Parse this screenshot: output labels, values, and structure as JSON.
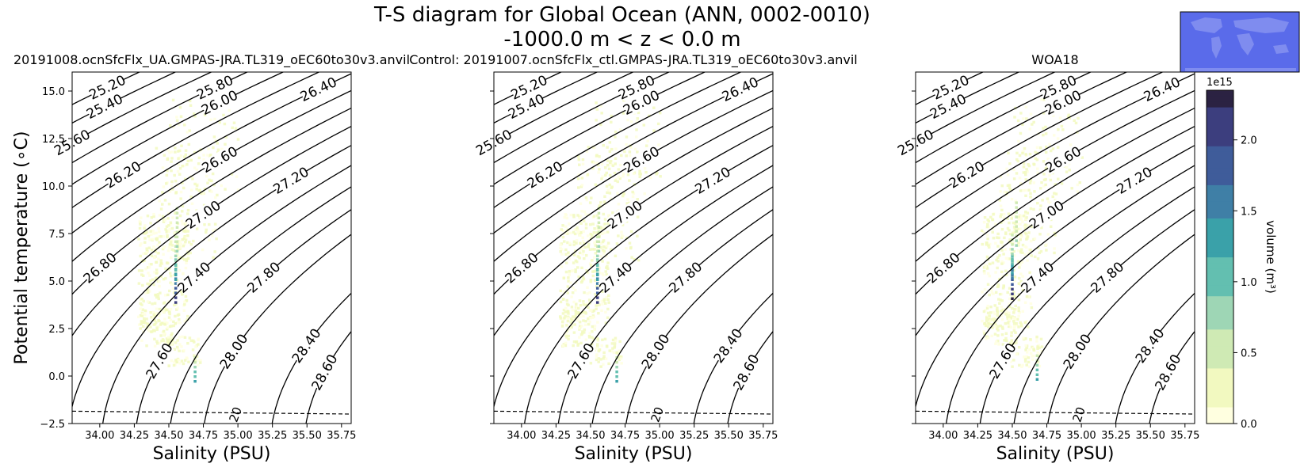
{
  "figure": {
    "title_line1": "T-S diagram for Global Ocean (ANN, 0002-0010)",
    "title_line2": "-1000.0 m < z < 0.0 m"
  },
  "colors": {
    "contour": "#000000",
    "freezing_line": "#000000",
    "inset_ocean": "#5a6bea",
    "inset_land": "#7f8cef",
    "cmap": [
      "#ffffe0",
      "#f2f9c0",
      "#cfeab4",
      "#9ed6b5",
      "#63bfb0",
      "#3aa1a9",
      "#3f7fa6",
      "#3f5c9a",
      "#3c3e7e",
      "#2b2242"
    ]
  },
  "chart_data": [
    {
      "type": "heatmap",
      "title": "20191008.ocnSfcFlx_UA.GMPAS-JRA.TL319_oEC60to30v3.anvil",
      "xlabel": "Salinity (PSU)",
      "ylabel": "Potential temperature (∘C)",
      "xlim": [
        33.8,
        35.82
      ],
      "ylim": [
        -2.5,
        16.0
      ],
      "xticks": [
        "34.00",
        "34.25",
        "34.50",
        "34.75",
        "35.00",
        "35.25",
        "35.50",
        "35.75"
      ],
      "yticks": [
        "−2.5",
        "0.0",
        "2.5",
        "5.0",
        "7.5",
        "10.0",
        "12.5",
        "15.0"
      ],
      "density_contours": [
        "25.20",
        "25.40",
        "25.60",
        "25.80",
        "26.00",
        "26.20",
        "26.40",
        "26.60",
        "26.80",
        "27.00",
        "27.20",
        "27.40",
        "27.60",
        "27.80",
        "28.00",
        "28.40",
        "28.60"
      ],
      "freezing_label": "20",
      "volume_hotspots": [
        {
          "salinity": 34.54,
          "temperature": 4.3,
          "volume": 2200000000000000.0
        },
        {
          "salinity": 34.54,
          "temperature": 5.5,
          "volume": 1400000000000000.0
        },
        {
          "salinity": 34.55,
          "temperature": 7.0,
          "volume": 900000000000000.0
        },
        {
          "salinity": 34.68,
          "temperature": 0.4,
          "volume": 1200000000000000.0
        }
      ]
    },
    {
      "type": "heatmap",
      "title": "Control: 20191007.ocnSfcFlx_ctl.GMPAS-JRA.TL319_oEC60to30v3.anvil",
      "xlabel": "Salinity (PSU)",
      "ylabel": "",
      "xlim": [
        33.8,
        35.82
      ],
      "ylim": [
        -2.5,
        16.0
      ],
      "xticks": [
        "34.00",
        "34.25",
        "34.50",
        "34.75",
        "35.00",
        "35.25",
        "35.50",
        "35.75"
      ],
      "yticks": [],
      "density_contours": [
        "25.20",
        "25.40",
        "25.60",
        "25.80",
        "26.00",
        "26.20",
        "26.40",
        "26.60",
        "26.80",
        "27.00",
        "27.20",
        "27.40",
        "27.60",
        "27.80",
        "28.00",
        "28.40",
        "28.60"
      ],
      "freezing_label": "20",
      "volume_hotspots": [
        {
          "salinity": 34.54,
          "temperature": 4.3,
          "volume": 2200000000000000.0
        },
        {
          "salinity": 34.54,
          "temperature": 5.5,
          "volume": 1400000000000000.0
        },
        {
          "salinity": 34.55,
          "temperature": 7.0,
          "volume": 900000000000000.0
        },
        {
          "salinity": 34.68,
          "temperature": 0.4,
          "volume": 1200000000000000.0
        }
      ]
    },
    {
      "type": "heatmap",
      "title": "WOA18",
      "xlabel": "Salinity (PSU)",
      "ylabel": "",
      "xlim": [
        33.8,
        35.82
      ],
      "ylim": [
        -2.5,
        16.0
      ],
      "xticks": [
        "34.00",
        "34.25",
        "34.50",
        "34.75",
        "35.00",
        "35.25",
        "35.50",
        "35.75"
      ],
      "yticks": [],
      "density_contours": [
        "25.20",
        "25.40",
        "25.60",
        "25.80",
        "26.00",
        "26.20",
        "26.40",
        "26.60",
        "26.80",
        "27.00",
        "27.20",
        "27.40",
        "27.60",
        "27.80",
        "28.00",
        "28.40",
        "28.60"
      ],
      "freezing_label": "20",
      "volume_hotspots": [
        {
          "salinity": 34.49,
          "temperature": 4.5,
          "volume": 2300000000000000.0
        },
        {
          "salinity": 34.49,
          "temperature": 5.6,
          "volume": 1500000000000000.0
        },
        {
          "salinity": 34.52,
          "temperature": 7.3,
          "volume": 800000000000000.0
        },
        {
          "salinity": 34.67,
          "temperature": 0.5,
          "volume": 1200000000000000.0
        }
      ]
    }
  ],
  "colorbar": {
    "label": "volume (m³)",
    "exponent": "1e15",
    "range": [
      0,
      2.35
    ],
    "ticks": [
      "0.0",
      "0.5",
      "1.0",
      "1.5",
      "2.0"
    ]
  }
}
